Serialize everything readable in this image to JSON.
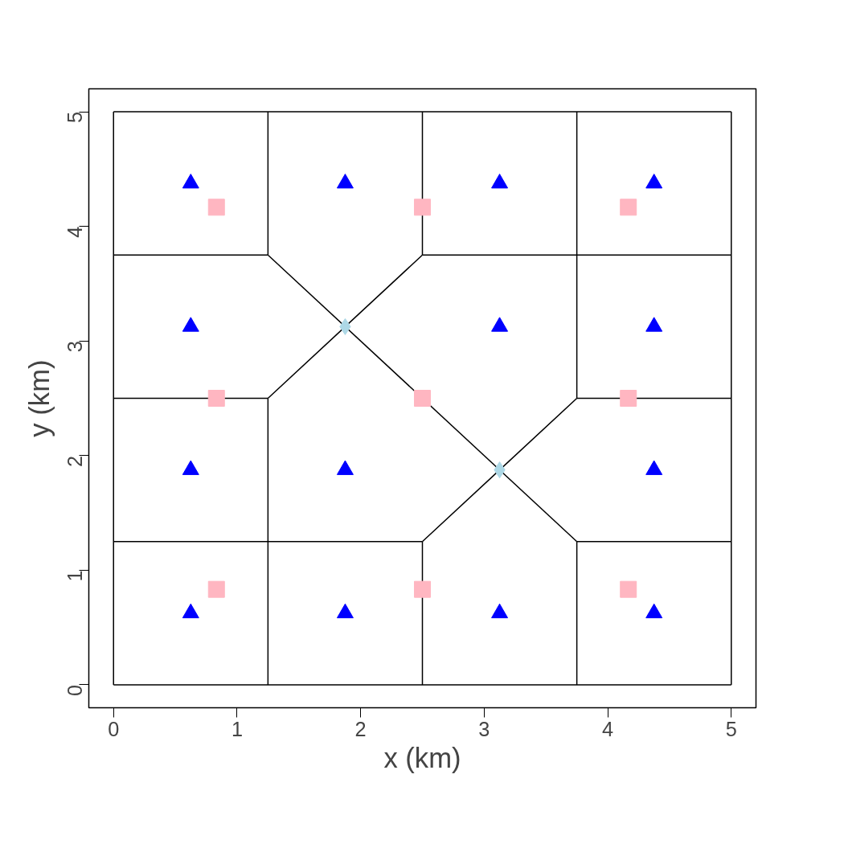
{
  "chart_data": {
    "type": "scatter",
    "xlabel": "x (km)",
    "ylabel": "y (km)",
    "xlim": [
      -0.2,
      5.2
    ],
    "ylim": [
      -0.2,
      5.2
    ],
    "xticks": [
      0,
      1,
      2,
      3,
      4,
      5
    ],
    "yticks": [
      0,
      1,
      2,
      3,
      4,
      5
    ],
    "grid": false,
    "series": [
      {
        "type": "line",
        "color": "#000000",
        "x": [
          0,
          5
        ],
        "values": [
          0,
          0
        ]
      },
      {
        "type": "line",
        "color": "#000000",
        "x": [
          5,
          5
        ],
        "values": [
          0,
          5
        ]
      },
      {
        "type": "line",
        "color": "#000000",
        "x": [
          0,
          5
        ],
        "values": [
          5,
          5
        ]
      },
      {
        "type": "line",
        "color": "#000000",
        "x": [
          0,
          0
        ],
        "values": [
          0,
          5
        ]
      },
      {
        "type": "line",
        "color": "#000000",
        "x": [
          1.25,
          1.25
        ],
        "values": [
          0,
          2.5
        ]
      },
      {
        "type": "line",
        "color": "#000000",
        "x": [
          1.25,
          1.25
        ],
        "values": [
          3.75,
          5
        ]
      },
      {
        "type": "line",
        "color": "#000000",
        "x": [
          2.5,
          2.5
        ],
        "values": [
          0,
          1.25
        ]
      },
      {
        "type": "line",
        "color": "#000000",
        "x": [
          2.5,
          2.5
        ],
        "values": [
          3.75,
          5
        ]
      },
      {
        "type": "line",
        "color": "#000000",
        "x": [
          3.75,
          3.75
        ],
        "values": [
          0,
          1.25
        ]
      },
      {
        "type": "line",
        "color": "#000000",
        "x": [
          3.75,
          3.75
        ],
        "values": [
          2.5,
          5
        ]
      },
      {
        "type": "line",
        "color": "#000000",
        "x": [
          0,
          1.25
        ],
        "values": [
          3.75,
          3.75
        ]
      },
      {
        "type": "line",
        "color": "#000000",
        "x": [
          2.5,
          5
        ],
        "values": [
          3.75,
          3.75
        ]
      },
      {
        "type": "line",
        "color": "#000000",
        "x": [
          0,
          1.25
        ],
        "values": [
          2.5,
          2.5
        ]
      },
      {
        "type": "line",
        "color": "#000000",
        "x": [
          3.75,
          5
        ],
        "values": [
          2.5,
          2.5
        ]
      },
      {
        "type": "line",
        "color": "#000000",
        "x": [
          0,
          2.5
        ],
        "values": [
          1.25,
          1.25
        ]
      },
      {
        "type": "line",
        "color": "#000000",
        "x": [
          3.75,
          5
        ],
        "values": [
          1.25,
          1.25
        ]
      },
      {
        "type": "line",
        "color": "#000000",
        "x": [
          1.25,
          3.75
        ],
        "values": [
          3.75,
          1.25
        ]
      },
      {
        "type": "line",
        "color": "#000000",
        "x": [
          1.25,
          1.875,
          2.5
        ],
        "values": [
          2.5,
          3.125,
          3.75
        ]
      },
      {
        "type": "line",
        "color": "#000000",
        "x": [
          2.5,
          3.125,
          3.75
        ],
        "values": [
          1.25,
          1.875,
          2.5
        ]
      },
      {
        "color": "#0000ff",
        "marker": "triangle",
        "x": [
          0.625,
          1.875,
          3.125,
          4.375,
          0.625,
          3.125,
          4.375,
          0.625,
          1.875,
          4.375,
          0.625,
          1.875,
          3.125,
          4.375
        ],
        "values": [
          4.375,
          4.375,
          4.375,
          4.375,
          3.125,
          3.125,
          3.125,
          1.875,
          1.875,
          1.875,
          0.625,
          0.625,
          0.625,
          0.625
        ]
      },
      {
        "color": "#ffb6c1",
        "marker": "square",
        "x": [
          0.833,
          2.5,
          4.167,
          0.833,
          2.5,
          4.167,
          0.833,
          2.5,
          4.167
        ],
        "values": [
          4.167,
          4.167,
          4.167,
          2.5,
          2.5,
          2.5,
          0.833,
          0.833,
          0.833
        ]
      },
      {
        "color": "#add8e6",
        "marker": "diamond",
        "x": [
          1.875,
          3.125
        ],
        "values": [
          3.125,
          1.875
        ]
      }
    ]
  }
}
